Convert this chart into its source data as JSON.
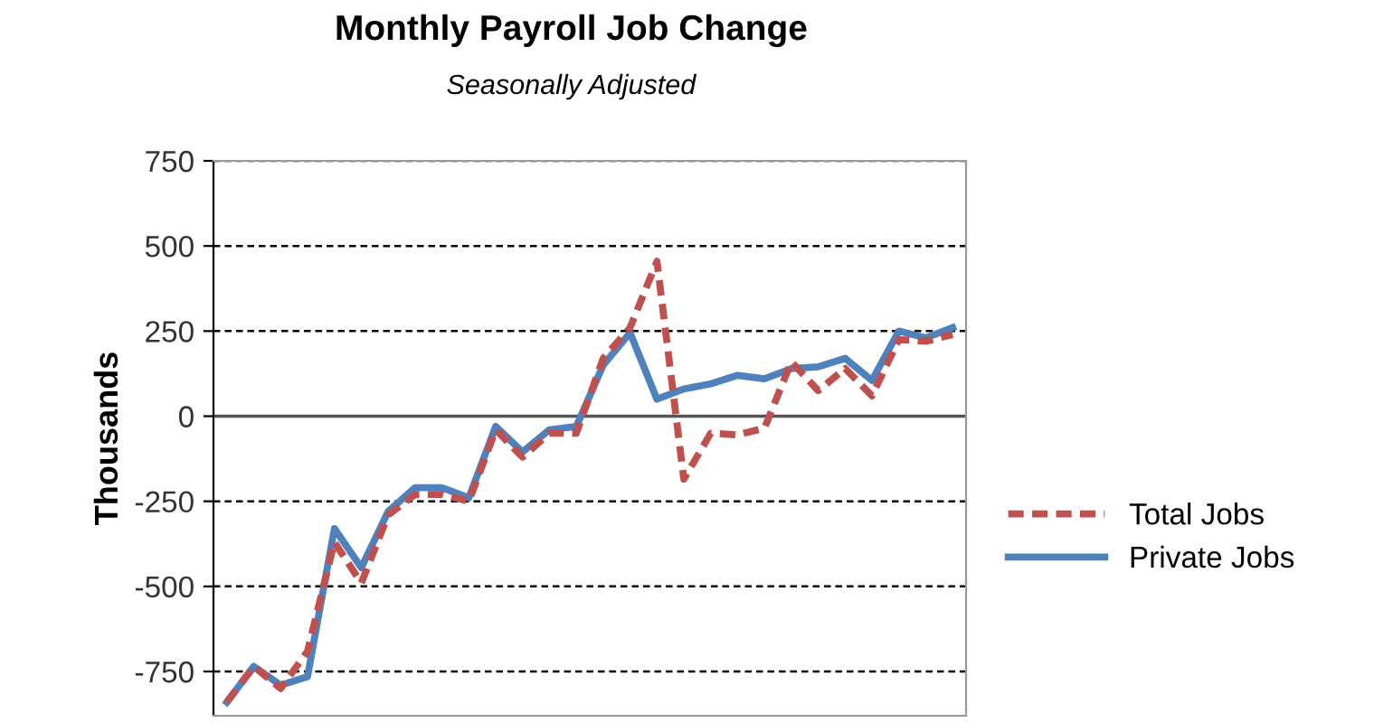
{
  "chart_data": {
    "type": "line",
    "title": "Monthly Payroll Job Change",
    "subtitle": "Seasonally Adjusted",
    "ylabel": "Thousands",
    "categories": [
      null,
      null,
      null,
      null,
      null,
      null,
      null,
      null,
      null,
      null,
      null,
      null,
      null,
      null,
      null,
      null,
      null,
      null,
      null,
      null,
      null,
      null,
      null,
      null,
      null,
      null,
      null,
      null
    ],
    "series": [
      {
        "name": "Total Jobs",
        "color": "#c0504d",
        "line_style": "dashed",
        "values": [
          -840,
          -735,
          -800,
          -690,
          -370,
          -490,
          -290,
          -230,
          -230,
          -250,
          -40,
          -120,
          -50,
          -50,
          170,
          260,
          455,
          -185,
          -50,
          -55,
          -35,
          160,
          75,
          140,
          60,
          225,
          220,
          240
        ]
      },
      {
        "name": "Private Jobs",
        "color": "#4f81bd",
        "line_style": "solid",
        "values": [
          -840,
          -735,
          -790,
          -765,
          -330,
          -445,
          -280,
          -210,
          -210,
          -240,
          -30,
          -105,
          -40,
          -30,
          150,
          245,
          50,
          80,
          95,
          120,
          110,
          140,
          145,
          170,
          105,
          250,
          230,
          260
        ]
      }
    ],
    "ylim": [
      -880,
      750
    ],
    "yticks": [
      -750,
      -500,
      -250,
      0,
      250,
      500,
      750
    ],
    "tick_labels": "y",
    "grid": "y",
    "legend": "right",
    "marker": "none"
  }
}
